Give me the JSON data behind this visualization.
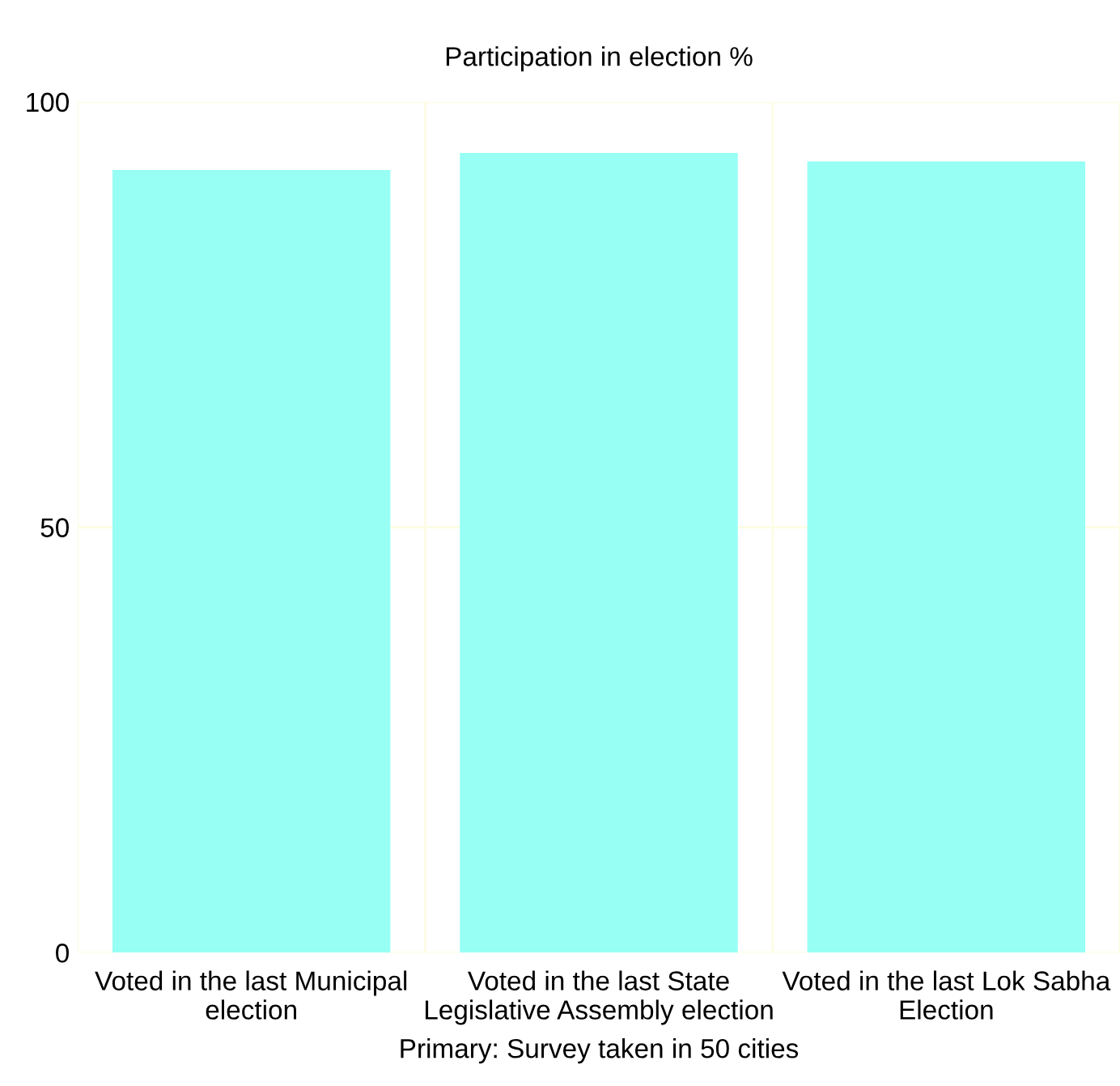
{
  "chart_data": {
    "type": "bar",
    "title": "Participation in election %",
    "xlabel": "Primary: Survey taken in 50 cities",
    "categories": [
      "Voted in the last Municipal\nelection",
      "Voted in the last State\nLegislative Assembly election",
      "Voted in the last Lok Sabha\nElection"
    ],
    "values": [
      92,
      94,
      93
    ],
    "color": "#98fff5",
    "ylim": [
      0,
      100
    ],
    "yticks": [
      0,
      50,
      100
    ],
    "grid": true
  }
}
